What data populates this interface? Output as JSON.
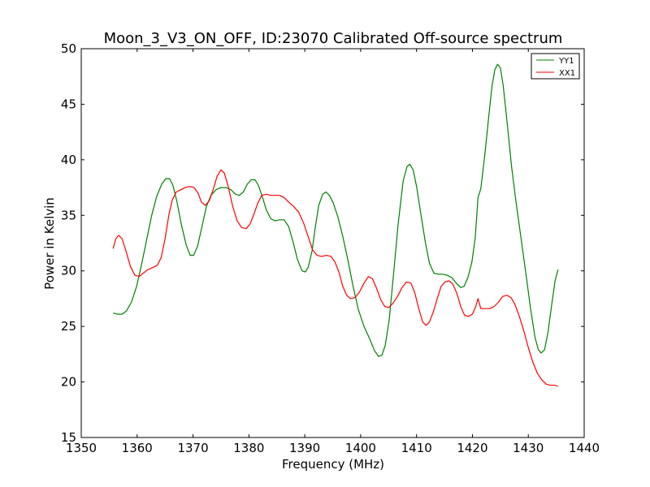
{
  "chart_data": {
    "type": "line",
    "title": "Moon_3_V3_ON_OFF, ID:23070 Calibrated Off-source spectrum",
    "xlabel": "Frequency (MHz)",
    "ylabel": "Power in Kelvin",
    "xlim": [
      1350,
      1440
    ],
    "ylim": [
      15,
      50
    ],
    "xticks": [
      1350,
      1360,
      1370,
      1380,
      1390,
      1400,
      1410,
      1420,
      1430,
      1440
    ],
    "yticks": [
      15,
      20,
      25,
      30,
      35,
      40,
      45,
      50
    ],
    "grid": false,
    "legend_position": "top-right",
    "series": [
      {
        "name": "YY1",
        "color": "#008000",
        "points": [
          [
            1355.7,
            26.2
          ],
          [
            1356.5,
            26.1
          ],
          [
            1357.3,
            26.1
          ],
          [
            1358.1,
            26.4
          ],
          [
            1359.0,
            27.2
          ],
          [
            1359.9,
            28.6
          ],
          [
            1360.8,
            30.6
          ],
          [
            1361.7,
            32.8
          ],
          [
            1362.6,
            35.0
          ],
          [
            1363.5,
            36.7
          ],
          [
            1364.4,
            37.8
          ],
          [
            1365.1,
            38.3
          ],
          [
            1365.8,
            38.3
          ],
          [
            1366.4,
            37.7
          ],
          [
            1367.1,
            36.3
          ],
          [
            1367.9,
            34.2
          ],
          [
            1368.8,
            32.3
          ],
          [
            1369.5,
            31.4
          ],
          [
            1370.1,
            31.4
          ],
          [
            1370.8,
            32.2
          ],
          [
            1371.6,
            34.0
          ],
          [
            1372.4,
            35.8
          ],
          [
            1373.2,
            36.8
          ],
          [
            1374.1,
            37.3
          ],
          [
            1375.0,
            37.5
          ],
          [
            1375.9,
            37.5
          ],
          [
            1376.8,
            37.3
          ],
          [
            1377.6,
            36.9
          ],
          [
            1378.3,
            36.8
          ],
          [
            1379.0,
            37.1
          ],
          [
            1379.7,
            37.8
          ],
          [
            1380.4,
            38.2
          ],
          [
            1381.1,
            38.2
          ],
          [
            1381.7,
            37.7
          ],
          [
            1382.4,
            36.7
          ],
          [
            1383.1,
            35.5
          ],
          [
            1383.9,
            34.7
          ],
          [
            1384.7,
            34.5
          ],
          [
            1385.5,
            34.6
          ],
          [
            1386.3,
            34.6
          ],
          [
            1387.1,
            34.0
          ],
          [
            1387.9,
            32.6
          ],
          [
            1388.7,
            31.0
          ],
          [
            1389.5,
            30.0
          ],
          [
            1390.1,
            29.9
          ],
          [
            1390.6,
            30.3
          ],
          [
            1391.3,
            31.8
          ],
          [
            1391.9,
            34.0
          ],
          [
            1392.5,
            35.9
          ],
          [
            1393.2,
            36.9
          ],
          [
            1393.8,
            37.1
          ],
          [
            1394.4,
            36.8
          ],
          [
            1395.1,
            36.1
          ],
          [
            1395.9,
            34.9
          ],
          [
            1396.8,
            33.1
          ],
          [
            1397.7,
            31.0
          ],
          [
            1398.6,
            28.7
          ],
          [
            1399.6,
            26.5
          ],
          [
            1400.6,
            25.0
          ],
          [
            1401.6,
            23.9
          ],
          [
            1402.5,
            22.8
          ],
          [
            1403.2,
            22.3
          ],
          [
            1403.8,
            22.4
          ],
          [
            1404.4,
            23.3
          ],
          [
            1405.1,
            25.6
          ],
          [
            1405.9,
            29.8
          ],
          [
            1406.7,
            34.2
          ],
          [
            1407.6,
            38.1
          ],
          [
            1408.3,
            39.4
          ],
          [
            1408.8,
            39.6
          ],
          [
            1409.4,
            39.1
          ],
          [
            1410.0,
            37.6
          ],
          [
            1410.8,
            35.0
          ],
          [
            1411.6,
            32.5
          ],
          [
            1412.3,
            30.7
          ],
          [
            1413.1,
            29.8
          ],
          [
            1413.9,
            29.7
          ],
          [
            1414.7,
            29.7
          ],
          [
            1415.5,
            29.6
          ],
          [
            1416.3,
            29.4
          ],
          [
            1417.1,
            28.9
          ],
          [
            1417.9,
            28.5
          ],
          [
            1418.5,
            28.6
          ],
          [
            1419.2,
            29.4
          ],
          [
            1419.9,
            30.8
          ],
          [
            1420.5,
            33.0
          ],
          [
            1421.0,
            36.6
          ],
          [
            1421.5,
            37.4
          ],
          [
            1422.2,
            40.4
          ],
          [
            1422.9,
            43.8
          ],
          [
            1423.5,
            46.6
          ],
          [
            1424.0,
            48.1
          ],
          [
            1424.5,
            48.6
          ],
          [
            1425.0,
            48.3
          ],
          [
            1425.5,
            46.7
          ],
          [
            1426.2,
            43.4
          ],
          [
            1427.0,
            39.4
          ],
          [
            1427.8,
            36.2
          ],
          [
            1428.6,
            33.3
          ],
          [
            1429.5,
            30.0
          ],
          [
            1430.4,
            26.6
          ],
          [
            1431.2,
            24.0
          ],
          [
            1431.8,
            22.9
          ],
          [
            1432.3,
            22.6
          ],
          [
            1432.9,
            22.9
          ],
          [
            1433.5,
            24.4
          ],
          [
            1434.2,
            27.0
          ],
          [
            1434.8,
            29.1
          ],
          [
            1435.3,
            30.1
          ]
        ]
      },
      {
        "name": "XX1",
        "color": "#ff0000",
        "points": [
          [
            1355.7,
            32.0
          ],
          [
            1356.2,
            32.9
          ],
          [
            1356.7,
            33.2
          ],
          [
            1357.3,
            32.9
          ],
          [
            1358.0,
            31.8
          ],
          [
            1358.8,
            30.4
          ],
          [
            1359.6,
            29.6
          ],
          [
            1360.4,
            29.5
          ],
          [
            1361.1,
            29.8
          ],
          [
            1361.9,
            30.1
          ],
          [
            1362.8,
            30.3
          ],
          [
            1363.6,
            30.5
          ],
          [
            1364.3,
            31.2
          ],
          [
            1365.0,
            32.9
          ],
          [
            1365.7,
            35.1
          ],
          [
            1366.3,
            36.4
          ],
          [
            1367.0,
            37.1
          ],
          [
            1367.8,
            37.3
          ],
          [
            1368.6,
            37.5
          ],
          [
            1369.4,
            37.6
          ],
          [
            1370.2,
            37.5
          ],
          [
            1370.9,
            37.0
          ],
          [
            1371.5,
            36.2
          ],
          [
            1372.2,
            35.9
          ],
          [
            1372.9,
            36.3
          ],
          [
            1373.6,
            37.3
          ],
          [
            1374.3,
            38.5
          ],
          [
            1375.0,
            39.1
          ],
          [
            1375.6,
            38.8
          ],
          [
            1376.3,
            37.6
          ],
          [
            1377.1,
            35.8
          ],
          [
            1377.9,
            34.5
          ],
          [
            1378.7,
            33.9
          ],
          [
            1379.5,
            33.8
          ],
          [
            1380.2,
            34.2
          ],
          [
            1380.9,
            35.1
          ],
          [
            1381.6,
            36.1
          ],
          [
            1382.3,
            36.8
          ],
          [
            1383.1,
            36.9
          ],
          [
            1383.9,
            36.8
          ],
          [
            1384.7,
            36.8
          ],
          [
            1385.5,
            36.8
          ],
          [
            1386.3,
            36.6
          ],
          [
            1387.1,
            36.2
          ],
          [
            1388.0,
            35.8
          ],
          [
            1388.9,
            35.3
          ],
          [
            1389.8,
            34.3
          ],
          [
            1390.6,
            33.1
          ],
          [
            1391.4,
            31.9
          ],
          [
            1392.2,
            31.4
          ],
          [
            1393.0,
            31.3
          ],
          [
            1393.9,
            31.4
          ],
          [
            1394.7,
            31.3
          ],
          [
            1395.4,
            30.8
          ],
          [
            1396.1,
            29.9
          ],
          [
            1396.8,
            28.6
          ],
          [
            1397.5,
            27.8
          ],
          [
            1398.2,
            27.5
          ],
          [
            1399.0,
            27.6
          ],
          [
            1399.8,
            28.1
          ],
          [
            1400.6,
            28.9
          ],
          [
            1401.4,
            29.5
          ],
          [
            1402.1,
            29.3
          ],
          [
            1402.8,
            28.5
          ],
          [
            1403.6,
            27.4
          ],
          [
            1404.3,
            26.8
          ],
          [
            1405.0,
            26.7
          ],
          [
            1405.8,
            27.1
          ],
          [
            1406.6,
            27.7
          ],
          [
            1407.4,
            28.5
          ],
          [
            1408.2,
            29.0
          ],
          [
            1409.0,
            28.9
          ],
          [
            1409.7,
            28.0
          ],
          [
            1410.4,
            26.6
          ],
          [
            1411.1,
            25.4
          ],
          [
            1411.7,
            25.1
          ],
          [
            1412.3,
            25.4
          ],
          [
            1413.0,
            26.3
          ],
          [
            1413.7,
            27.5
          ],
          [
            1414.4,
            28.6
          ],
          [
            1415.1,
            29.0
          ],
          [
            1415.8,
            29.1
          ],
          [
            1416.5,
            28.8
          ],
          [
            1417.2,
            28.0
          ],
          [
            1417.9,
            26.8
          ],
          [
            1418.6,
            26.0
          ],
          [
            1419.3,
            25.9
          ],
          [
            1420.0,
            26.1
          ],
          [
            1420.6,
            26.8
          ],
          [
            1421.0,
            27.5
          ],
          [
            1421.5,
            26.6
          ],
          [
            1422.3,
            26.6
          ],
          [
            1423.1,
            26.6
          ],
          [
            1423.9,
            26.8
          ],
          [
            1424.7,
            27.2
          ],
          [
            1425.4,
            27.7
          ],
          [
            1426.2,
            27.8
          ],
          [
            1426.9,
            27.6
          ],
          [
            1427.6,
            27.0
          ],
          [
            1428.4,
            25.9
          ],
          [
            1429.2,
            24.6
          ],
          [
            1430.0,
            23.1
          ],
          [
            1430.8,
            21.8
          ],
          [
            1431.6,
            20.8
          ],
          [
            1432.4,
            20.2
          ],
          [
            1433.2,
            19.8
          ],
          [
            1434.0,
            19.7
          ],
          [
            1434.8,
            19.7
          ],
          [
            1435.3,
            19.6
          ]
        ]
      }
    ]
  }
}
